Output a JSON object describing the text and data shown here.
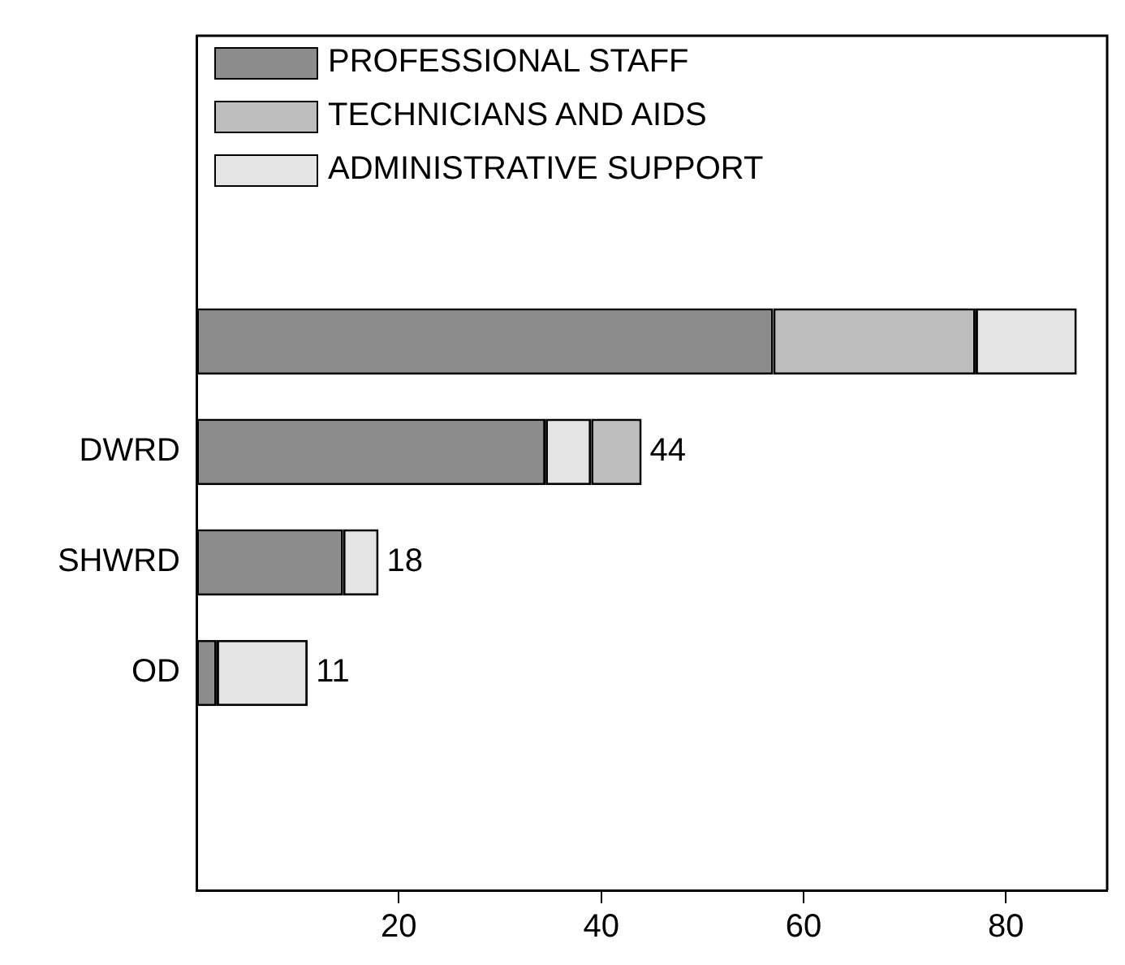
{
  "chart_data": {
    "type": "bar",
    "orientation": "horizontal",
    "categories": [
      null,
      "DWRD",
      "SHWRD",
      "OD"
    ],
    "series": [
      {
        "name": "PROFESSIONAL STAFF",
        "color": "#8c8c8c",
        "values": [
          57,
          34.5,
          14.5,
          2
        ],
        "base": [
          0,
          0,
          0,
          0
        ]
      },
      {
        "name": "TECHNICIANS AND AIDS",
        "color": "#bdbdbd",
        "values": [
          20,
          5,
          null,
          null
        ],
        "base": [
          57,
          39,
          null,
          null
        ]
      },
      {
        "name": "ADMINISTRATIVE SUPPORT",
        "color": "#e4e4e4",
        "values": [
          10,
          4.5,
          3.5,
          9
        ],
        "base": [
          77,
          34.5,
          14.5,
          2
        ]
      }
    ],
    "totals": [
      null,
      "44",
      "18",
      "11"
    ],
    "xlim": [
      0,
      90
    ],
    "xticks": [
      20,
      40,
      60,
      80
    ],
    "grid": false,
    "legend": "top left"
  }
}
